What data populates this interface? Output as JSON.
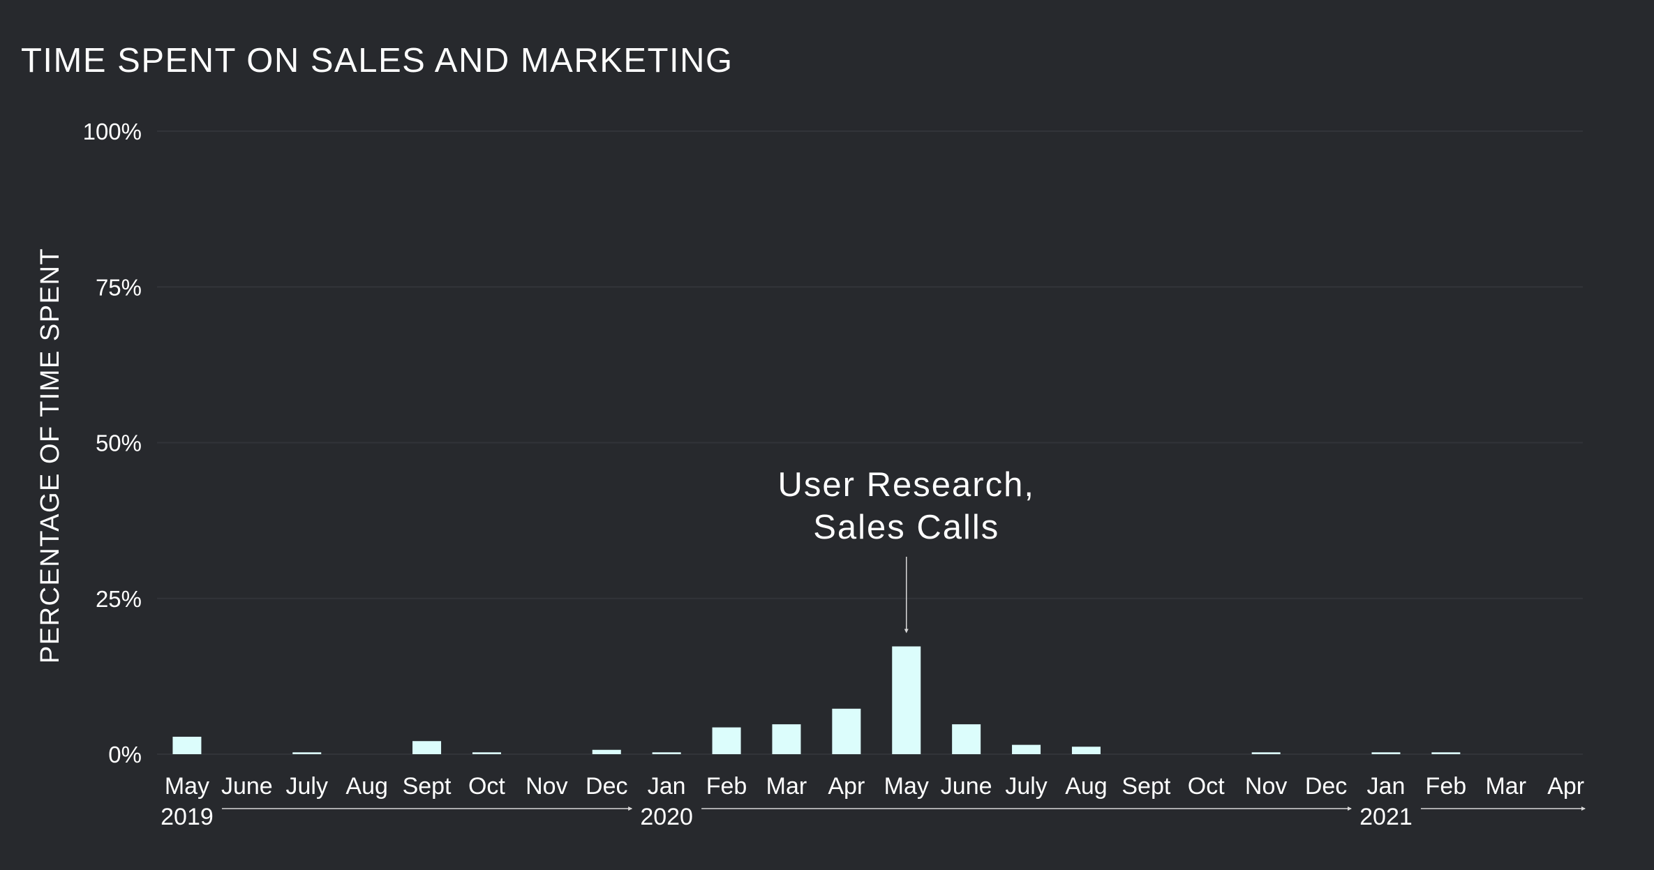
{
  "chart_data": {
    "type": "bar",
    "title": "TIME SPENT ON SALES AND MARKETING",
    "xlabel": "",
    "ylabel": "PERCENTAGE OF TIME SPENT",
    "ylim": [
      0,
      100
    ],
    "yticks": [
      "0%",
      "25%",
      "50%",
      "75%",
      "100%"
    ],
    "grid": true,
    "categories": [
      "May",
      "June",
      "July",
      "Aug",
      "Sept",
      "Oct",
      "Nov",
      "Dec",
      "Jan",
      "Feb",
      "Mar",
      "Apr",
      "May",
      "June",
      "July",
      "Aug",
      "Sept",
      "Oct",
      "Nov",
      "Dec",
      "Jan",
      "Feb",
      "Mar",
      "Apr"
    ],
    "values": [
      2.8,
      0,
      0.3,
      0,
      2.1,
      0.3,
      0,
      0.7,
      0.3,
      4.3,
      4.8,
      7.3,
      17.3,
      4.8,
      1.5,
      1.2,
      0,
      0,
      0.3,
      0,
      0.3,
      0.3,
      0,
      0
    ],
    "year_labels": [
      {
        "index": 0,
        "label": "2019"
      },
      {
        "index": 8,
        "label": "2020"
      },
      {
        "index": 20,
        "label": "2021"
      }
    ],
    "annotation": {
      "index": 12,
      "lines": [
        "User Research,",
        "Sales Calls"
      ]
    }
  }
}
